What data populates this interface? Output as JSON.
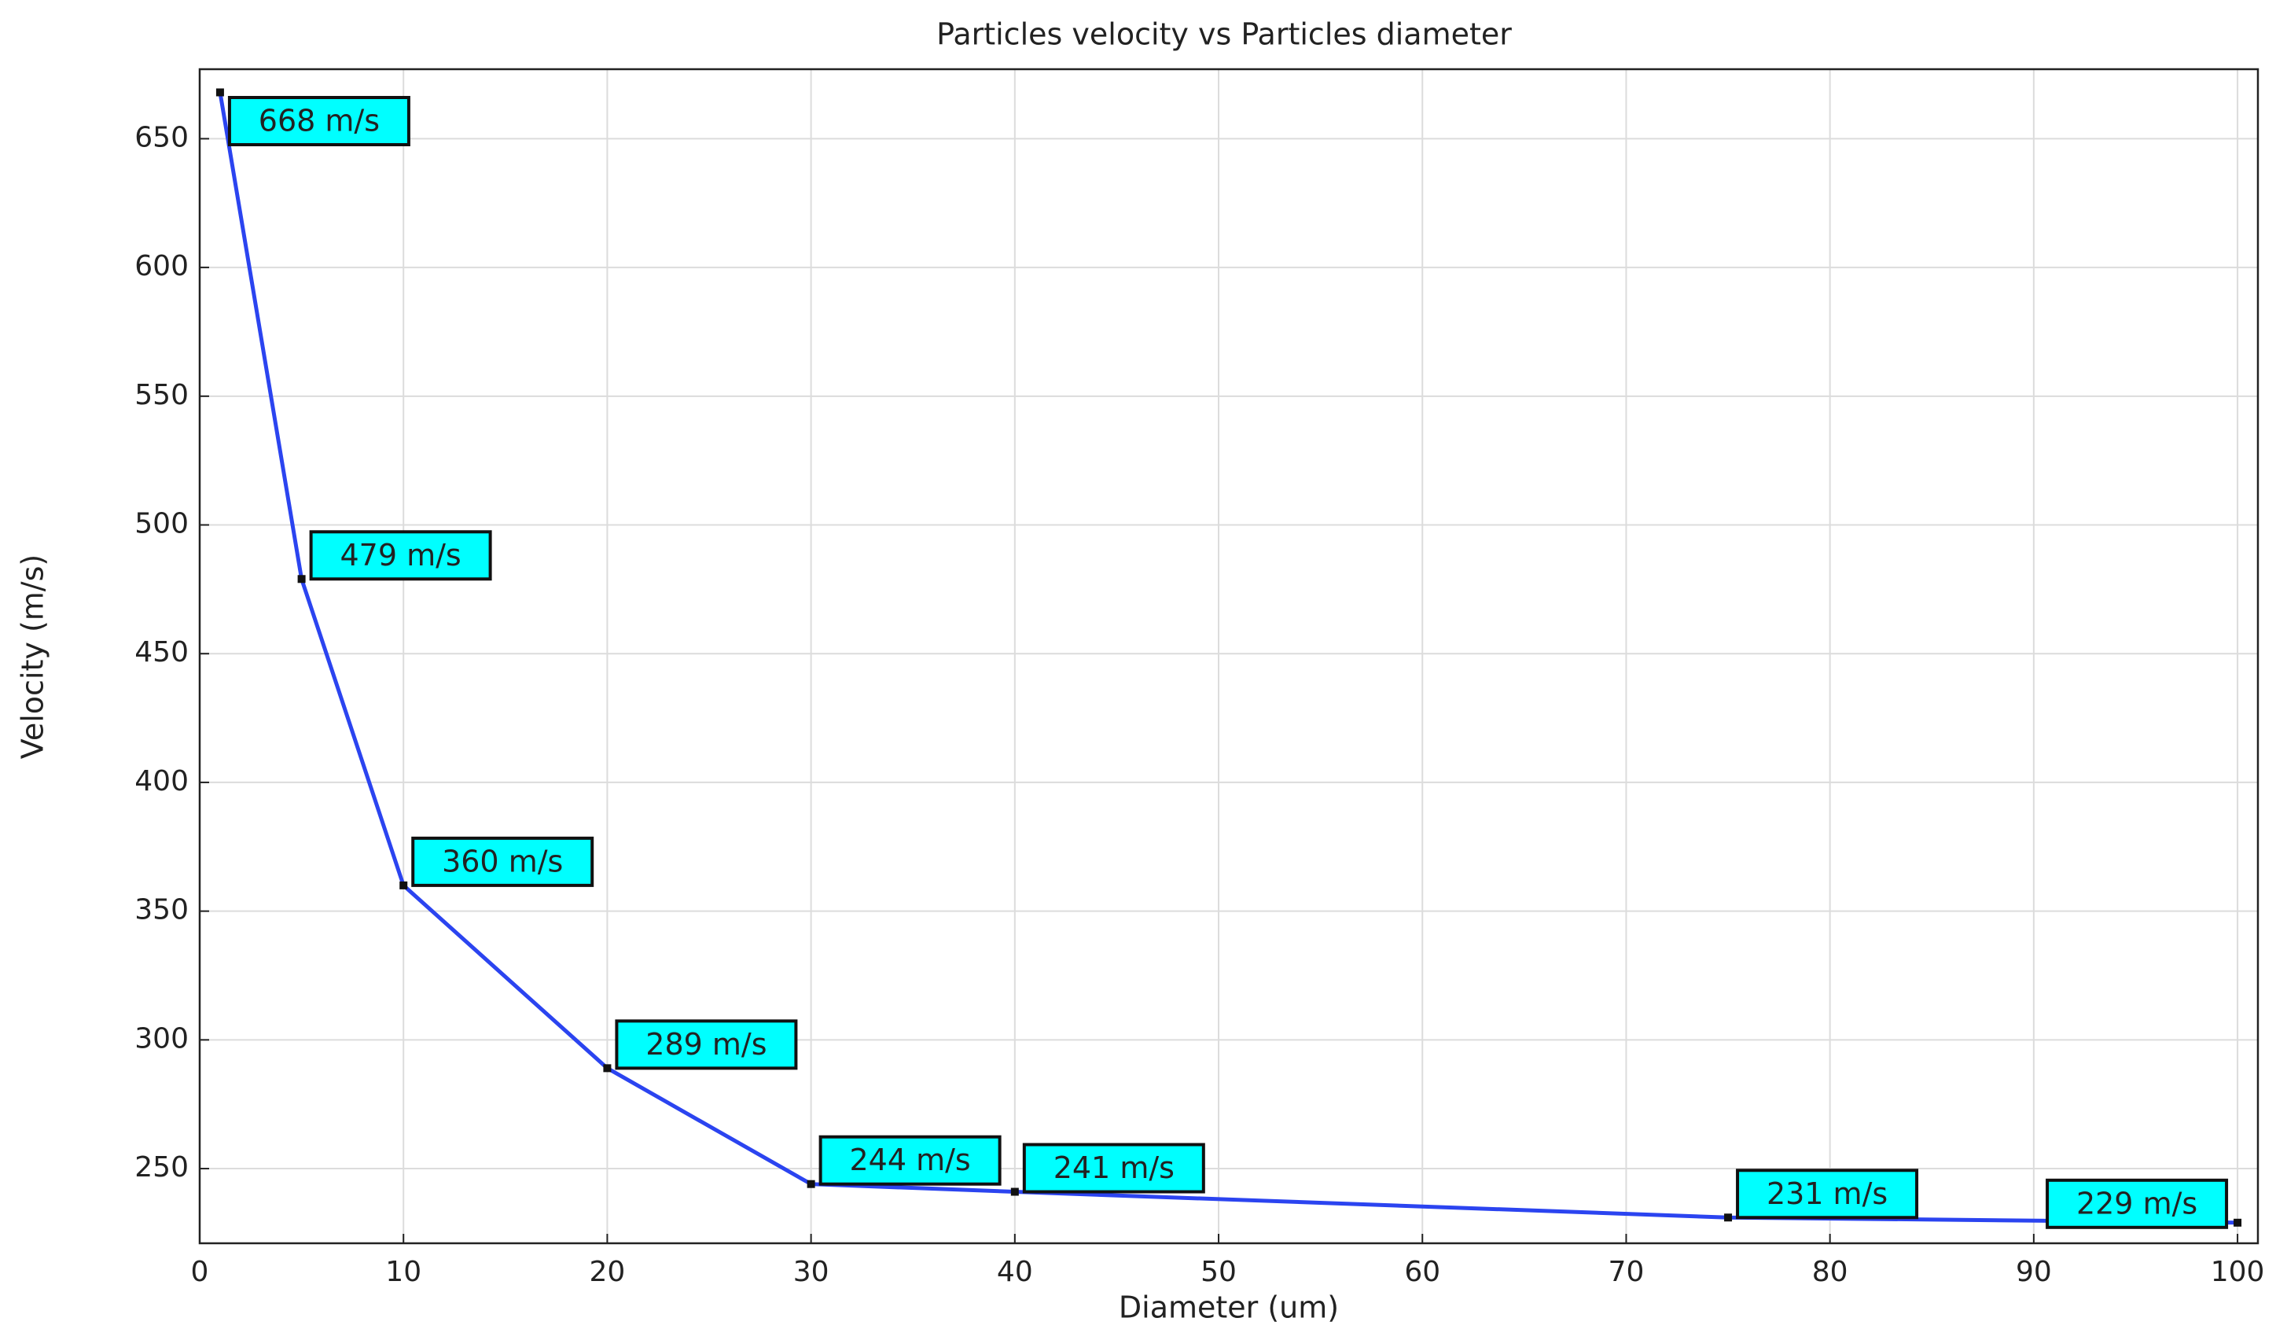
{
  "chart_data": {
    "type": "line",
    "title": "Particles velocity vs Particles diameter",
    "x_label": "Diameter (um)",
    "y_label": "Velocity (m/s)",
    "x": [
      1,
      5,
      10,
      20,
      30,
      40,
      75,
      100
    ],
    "series": [
      {
        "color": "#2b44f0",
        "values": [
          668,
          479,
          360,
          289,
          244,
          241,
          231,
          229
        ],
        "value_labels": [
          "668 m/s",
          "479 m/s",
          "360 m/s",
          "289 m/s",
          "244 m/s",
          "241 m/s",
          "231 m/s",
          "229 m/s"
        ]
      }
    ],
    "label_color": "#00ffff",
    "xlim": [
      0,
      101
    ],
    "ylim": [
      221,
      677
    ],
    "xticks": [
      0,
      10,
      20,
      30,
      40,
      50,
      60,
      70,
      80,
      90,
      100
    ],
    "yticks": [
      250,
      300,
      350,
      400,
      450,
      500,
      550,
      600,
      650
    ],
    "grid": true
  }
}
